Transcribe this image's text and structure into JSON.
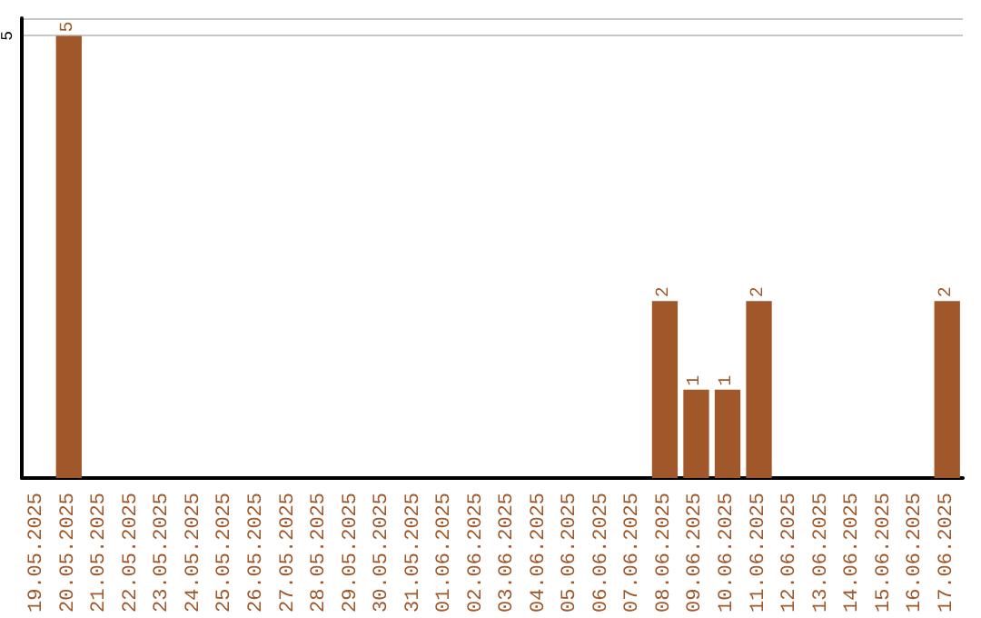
{
  "chart_data": {
    "type": "bar",
    "categories": [
      "19.05.2025",
      "20.05.2025",
      "21.05.2025",
      "22.05.2025",
      "23.05.2025",
      "24.05.2025",
      "25.05.2025",
      "26.05.2025",
      "27.05.2025",
      "28.05.2025",
      "29.05.2025",
      "30.05.2025",
      "31.05.2025",
      "01.06.2025",
      "02.06.2025",
      "03.06.2025",
      "04.06.2025",
      "05.06.2025",
      "06.06.2025",
      "07.06.2025",
      "08.06.2025",
      "09.06.2025",
      "10.06.2025",
      "11.06.2025",
      "12.06.2025",
      "13.06.2025",
      "14.06.2025",
      "15.06.2025",
      "16.06.2025",
      "17.06.2025"
    ],
    "values": [
      0,
      5,
      0,
      0,
      0,
      0,
      0,
      0,
      0,
      0,
      0,
      0,
      0,
      0,
      0,
      0,
      0,
      0,
      0,
      0,
      2,
      1,
      1,
      2,
      0,
      0,
      0,
      0,
      0,
      2
    ],
    "value_labels": [
      null,
      "5",
      null,
      null,
      null,
      null,
      null,
      null,
      null,
      null,
      null,
      null,
      null,
      null,
      null,
      null,
      null,
      null,
      null,
      null,
      "2",
      "1",
      "1",
      "2",
      null,
      null,
      null,
      null,
      null,
      "2"
    ],
    "color": "#a0582a",
    "ylim": [
      0,
      5.2
    ],
    "yticks": [
      5
    ],
    "grid": "y"
  }
}
